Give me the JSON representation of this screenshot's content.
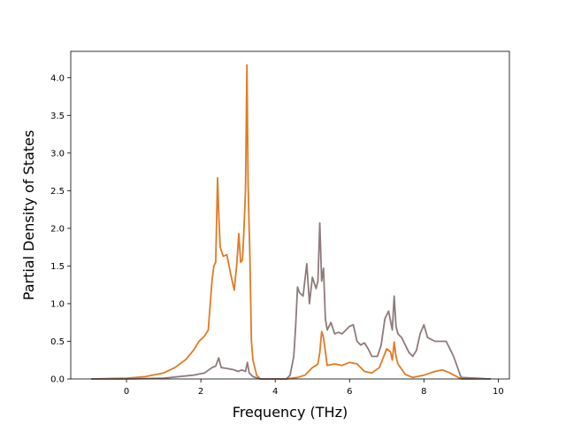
{
  "chart_data": {
    "type": "line",
    "xlabel": "Frequency (THz)",
    "ylabel": "Partial Density of States",
    "xlim": [
      -1.5,
      10.3
    ],
    "ylim": [
      0,
      4.35
    ],
    "xticks": [
      0,
      2,
      4,
      6,
      8,
      10
    ],
    "yticks": [
      0.0,
      0.5,
      1.0,
      1.5,
      2.0,
      2.5,
      3.0,
      3.5,
      4.0
    ],
    "xtick_labels": [
      "0",
      "2",
      "4",
      "6",
      "8",
      "10"
    ],
    "ytick_labels": [
      "0.0",
      "0.5",
      "1.0",
      "1.5",
      "2.0",
      "2.5",
      "3.0",
      "3.5",
      "4.0"
    ],
    "grid": false,
    "series": [
      {
        "color": "#e07b23",
        "x": [
          -0.95,
          0.0,
          0.5,
          1.0,
          1.3,
          1.6,
          1.8,
          1.95,
          2.1,
          2.2,
          2.3,
          2.35,
          2.4,
          2.45,
          2.48,
          2.52,
          2.6,
          2.7,
          2.8,
          2.9,
          2.97,
          3.02,
          3.07,
          3.12,
          3.16,
          3.2,
          3.24,
          3.27,
          3.32,
          3.36,
          3.4,
          3.5,
          3.6,
          4.3,
          4.6,
          4.8,
          5.0,
          5.1,
          5.15,
          5.2,
          5.25,
          5.3,
          5.4,
          5.6,
          5.8,
          6.0,
          6.2,
          6.4,
          6.6,
          6.8,
          7.0,
          7.1,
          7.15,
          7.2,
          7.25,
          7.3,
          7.5,
          7.7,
          8.0,
          8.3,
          8.5,
          8.7,
          9.0,
          9.8
        ],
        "y": [
          0.0,
          0.01,
          0.03,
          0.08,
          0.15,
          0.26,
          0.38,
          0.5,
          0.57,
          0.65,
          1.3,
          1.5,
          1.55,
          2.67,
          2.2,
          1.75,
          1.63,
          1.65,
          1.4,
          1.18,
          1.55,
          1.93,
          1.55,
          1.58,
          2.0,
          2.5,
          4.17,
          2.6,
          1.6,
          0.5,
          0.25,
          0.05,
          0.0,
          0.0,
          0.02,
          0.05,
          0.15,
          0.18,
          0.2,
          0.35,
          0.63,
          0.55,
          0.18,
          0.2,
          0.18,
          0.22,
          0.2,
          0.1,
          0.08,
          0.15,
          0.4,
          0.36,
          0.25,
          0.49,
          0.3,
          0.2,
          0.06,
          0.02,
          0.05,
          0.1,
          0.12,
          0.08,
          0.0,
          0.0
        ]
      },
      {
        "color": "#8e7b7b",
        "x": [
          -0.95,
          0.0,
          1.0,
          1.8,
          2.1,
          2.3,
          2.4,
          2.48,
          2.55,
          2.7,
          2.9,
          3.0,
          3.1,
          3.2,
          3.25,
          3.3,
          3.4,
          3.6,
          4.3,
          4.4,
          4.5,
          4.55,
          4.6,
          4.65,
          4.75,
          4.85,
          4.92,
          5.0,
          5.1,
          5.15,
          5.2,
          5.25,
          5.3,
          5.35,
          5.4,
          5.5,
          5.6,
          5.7,
          5.8,
          5.9,
          6.0,
          6.1,
          6.2,
          6.3,
          6.4,
          6.5,
          6.6,
          6.75,
          6.85,
          6.95,
          7.05,
          7.15,
          7.2,
          7.25,
          7.3,
          7.4,
          7.5,
          7.6,
          7.7,
          7.8,
          7.9,
          8.0,
          8.1,
          8.3,
          8.6,
          8.8,
          9.0,
          9.8
        ],
        "y": [
          0.0,
          0.0,
          0.01,
          0.05,
          0.08,
          0.15,
          0.17,
          0.28,
          0.15,
          0.14,
          0.12,
          0.1,
          0.12,
          0.1,
          0.22,
          0.08,
          0.03,
          0.0,
          0.0,
          0.05,
          0.3,
          0.7,
          1.22,
          1.15,
          1.1,
          1.53,
          1.0,
          1.35,
          1.2,
          1.3,
          2.07,
          1.3,
          1.47,
          0.8,
          0.65,
          0.75,
          0.6,
          0.62,
          0.6,
          0.65,
          0.7,
          0.72,
          0.5,
          0.45,
          0.48,
          0.4,
          0.3,
          0.3,
          0.45,
          0.8,
          0.9,
          0.65,
          1.1,
          0.7,
          0.6,
          0.55,
          0.45,
          0.35,
          0.3,
          0.38,
          0.6,
          0.72,
          0.55,
          0.5,
          0.5,
          0.3,
          0.02,
          0.0
        ]
      }
    ]
  }
}
